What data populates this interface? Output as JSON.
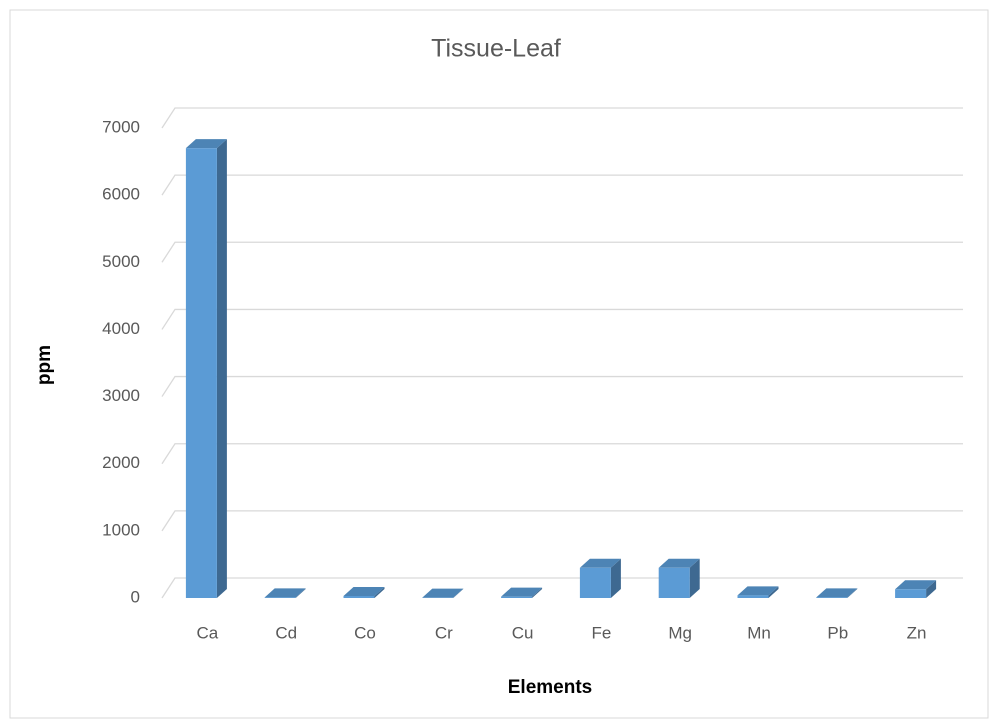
{
  "chart_data": {
    "type": "bar",
    "title": "Tissue-Leaf",
    "x_label": "Elements",
    "y_label": "ppm",
    "categories": [
      "Ca",
      "Cd",
      "Co",
      "Cr",
      "Cu",
      "Fe",
      "Mg",
      "Mn",
      "Pb",
      "Zn"
    ],
    "values": [
      6700,
      10,
      30,
      5,
      20,
      450,
      450,
      40,
      10,
      130
    ],
    "color": "#5b9bd5",
    "ylim": [
      0,
      7000
    ],
    "yticks": [
      0,
      1000,
      2000,
      3000,
      4000,
      5000,
      6000,
      7000
    ],
    "grid": true
  }
}
